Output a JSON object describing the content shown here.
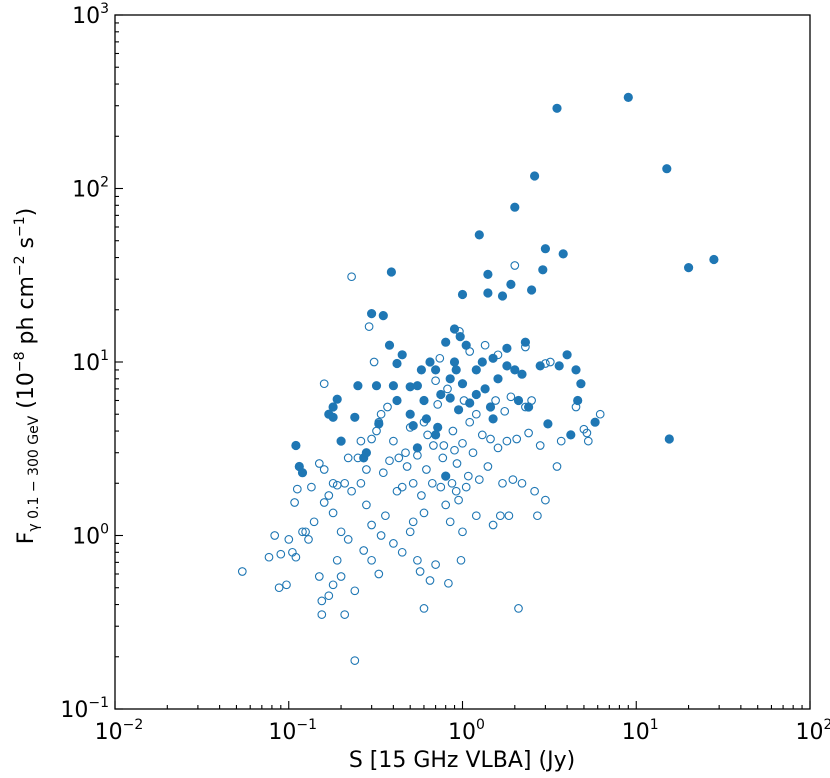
{
  "chart_data": {
    "type": "scatter",
    "title": "",
    "x_scale": "log",
    "y_scale": "log",
    "xlim": [
      0.01,
      100
    ],
    "ylim": [
      0.1,
      1000
    ],
    "x_ticks": [
      {
        "value": 0.01,
        "base": "10",
        "exp": "−2"
      },
      {
        "value": 0.1,
        "base": "10",
        "exp": "−1"
      },
      {
        "value": 1,
        "base": "10",
        "exp": "0"
      },
      {
        "value": 10,
        "base": "10",
        "exp": "1"
      },
      {
        "value": 100,
        "base": "10",
        "exp": "2"
      }
    ],
    "y_ticks": [
      {
        "value": 0.1,
        "base": "10",
        "exp": "−1"
      },
      {
        "value": 1,
        "base": "10",
        "exp": "0"
      },
      {
        "value": 10,
        "base": "10",
        "exp": "1"
      },
      {
        "value": 100,
        "base": "10",
        "exp": "2"
      },
      {
        "value": 1000,
        "base": "10",
        "exp": "3"
      }
    ],
    "xlabel": "S [15 GHz VLBA] (Jy)",
    "ylabel": {
      "main": "F",
      "symbol": "γ",
      "sub": " 0.1 − 300 GeV",
      "unit_a": " (10",
      "exp_a": "−8",
      "unit_b": " ph cm",
      "exp_b": "−2",
      "unit_c": " s",
      "exp_c": "−1",
      "unit_d": ")"
    },
    "color": "#1f77b4",
    "grid": false,
    "series": [
      {
        "marker": "filled",
        "points": [
          [
            0.11,
            3.3
          ],
          [
            0.115,
            2.5
          ],
          [
            0.12,
            2.3
          ],
          [
            0.17,
            5.0
          ],
          [
            0.18,
            4.8
          ],
          [
            0.18,
            5.5
          ],
          [
            0.19,
            6.1
          ],
          [
            0.2,
            3.5
          ],
          [
            0.24,
            4.8
          ],
          [
            0.25,
            7.3
          ],
          [
            0.27,
            2.8
          ],
          [
            0.28,
            3.0
          ],
          [
            0.3,
            19.0
          ],
          [
            0.32,
            7.3
          ],
          [
            0.33,
            4.4
          ],
          [
            0.35,
            18.5
          ],
          [
            0.38,
            12.5
          ],
          [
            0.39,
            33.0
          ],
          [
            0.4,
            7.3
          ],
          [
            0.42,
            9.8
          ],
          [
            0.42,
            6.0
          ],
          [
            0.45,
            11.0
          ],
          [
            0.5,
            7.2
          ],
          [
            0.5,
            5.0
          ],
          [
            0.52,
            4.3
          ],
          [
            0.55,
            7.3
          ],
          [
            0.55,
            3.2
          ],
          [
            0.58,
            9.0
          ],
          [
            0.6,
            6.0
          ],
          [
            0.62,
            4.7
          ],
          [
            0.65,
            10.0
          ],
          [
            0.7,
            3.8
          ],
          [
            0.7,
            9.0
          ],
          [
            0.72,
            4.2
          ],
          [
            0.75,
            6.5
          ],
          [
            0.8,
            13.0
          ],
          [
            0.8,
            2.2
          ],
          [
            0.85,
            8.0
          ],
          [
            0.85,
            6.2
          ],
          [
            0.9,
            15.5
          ],
          [
            0.9,
            10.0
          ],
          [
            0.92,
            9.0
          ],
          [
            0.95,
            5.3
          ],
          [
            0.97,
            14.0
          ],
          [
            1.0,
            24.5
          ],
          [
            1.0,
            7.5
          ],
          [
            1.05,
            12.5
          ],
          [
            1.1,
            5.8
          ],
          [
            1.2,
            9.0
          ],
          [
            1.2,
            6.5
          ],
          [
            1.25,
            54.0
          ],
          [
            1.3,
            10.0
          ],
          [
            1.35,
            7.0
          ],
          [
            1.4,
            32.0
          ],
          [
            1.4,
            25.0
          ],
          [
            1.45,
            5.5
          ],
          [
            1.5,
            4.7
          ],
          [
            1.5,
            10.5
          ],
          [
            1.6,
            8.0
          ],
          [
            1.7,
            24.0
          ],
          [
            1.8,
            12.0
          ],
          [
            1.8,
            9.5
          ],
          [
            1.9,
            28.0
          ],
          [
            2.0,
            78.0
          ],
          [
            2.0,
            9.0
          ],
          [
            2.1,
            6.0
          ],
          [
            2.2,
            8.5
          ],
          [
            2.3,
            13.0
          ],
          [
            2.4,
            5.5
          ],
          [
            2.5,
            26.0
          ],
          [
            2.6,
            118.0
          ],
          [
            2.8,
            9.5
          ],
          [
            2.9,
            34.0
          ],
          [
            3.0,
            45.0
          ],
          [
            3.1,
            4.4
          ],
          [
            3.5,
            290.0
          ],
          [
            3.6,
            9.5
          ],
          [
            3.8,
            42.0
          ],
          [
            4.0,
            11.0
          ],
          [
            4.2,
            3.8
          ],
          [
            4.5,
            9.0
          ],
          [
            4.6,
            6.0
          ],
          [
            4.8,
            7.5
          ],
          [
            5.8,
            4.5
          ],
          [
            9.0,
            335.0
          ],
          [
            15.0,
            130.0
          ],
          [
            15.5,
            3.6
          ],
          [
            20.0,
            35.0
          ],
          [
            28.0,
            39.0
          ]
        ]
      },
      {
        "marker": "hollow",
        "points": [
          [
            0.054,
            0.62
          ],
          [
            0.077,
            0.75
          ],
          [
            0.083,
            1.0
          ],
          [
            0.088,
            0.5
          ],
          [
            0.09,
            0.78
          ],
          [
            0.097,
            0.52
          ],
          [
            0.1,
            0.95
          ],
          [
            0.105,
            0.8
          ],
          [
            0.108,
            1.55
          ],
          [
            0.11,
            0.75
          ],
          [
            0.112,
            1.85
          ],
          [
            0.12,
            1.05
          ],
          [
            0.125,
            1.05
          ],
          [
            0.13,
            0.95
          ],
          [
            0.135,
            1.9
          ],
          [
            0.14,
            1.2
          ],
          [
            0.15,
            0.58
          ],
          [
            0.15,
            2.6
          ],
          [
            0.155,
            0.42
          ],
          [
            0.155,
            0.35
          ],
          [
            0.16,
            1.55
          ],
          [
            0.16,
            2.4
          ],
          [
            0.17,
            1.7
          ],
          [
            0.17,
            0.45
          ],
          [
            0.18,
            0.52
          ],
          [
            0.18,
            2.0
          ],
          [
            0.18,
            1.35
          ],
          [
            0.19,
            0.72
          ],
          [
            0.19,
            1.95
          ],
          [
            0.2,
            1.05
          ],
          [
            0.2,
            0.58
          ],
          [
            0.21,
            0.35
          ],
          [
            0.21,
            2.0
          ],
          [
            0.22,
            0.95
          ],
          [
            0.22,
            2.8
          ],
          [
            0.23,
            1.8
          ],
          [
            0.23,
            31.0
          ],
          [
            0.24,
            0.48
          ],
          [
            0.24,
            0.19
          ],
          [
            0.25,
            2.8
          ],
          [
            0.26,
            2.0
          ],
          [
            0.26,
            3.5
          ],
          [
            0.27,
            0.82
          ],
          [
            0.28,
            2.4
          ],
          [
            0.28,
            1.5
          ],
          [
            0.29,
            16.0
          ],
          [
            0.3,
            0.72
          ],
          [
            0.3,
            1.15
          ],
          [
            0.3,
            3.6
          ],
          [
            0.31,
            10.0
          ],
          [
            0.32,
            4.0
          ],
          [
            0.33,
            4.5
          ],
          [
            0.33,
            0.6
          ],
          [
            0.34,
            1.0
          ],
          [
            0.34,
            5.0
          ],
          [
            0.35,
            2.3
          ],
          [
            0.36,
            1.3
          ],
          [
            0.37,
            5.5
          ],
          [
            0.38,
            2.7
          ],
          [
            0.4,
            0.9
          ],
          [
            0.4,
            3.5
          ],
          [
            0.42,
            1.8
          ],
          [
            0.43,
            2.8
          ],
          [
            0.45,
            1.9
          ],
          [
            0.45,
            0.8
          ],
          [
            0.47,
            3.0
          ],
          [
            0.48,
            2.5
          ],
          [
            0.5,
            1.05
          ],
          [
            0.5,
            4.2
          ],
          [
            0.52,
            2.0
          ],
          [
            0.52,
            1.2
          ],
          [
            0.55,
            0.72
          ],
          [
            0.55,
            2.9
          ],
          [
            0.57,
            0.62
          ],
          [
            0.58,
            1.7
          ],
          [
            0.6,
            4.5
          ],
          [
            0.6,
            1.35
          ],
          [
            0.6,
            0.38
          ],
          [
            0.62,
            2.4
          ],
          [
            0.63,
            3.8
          ],
          [
            0.65,
            0.55
          ],
          [
            0.67,
            2.0
          ],
          [
            0.68,
            3.3
          ],
          [
            0.7,
            0.68
          ],
          [
            0.7,
            7.8
          ],
          [
            0.72,
            5.7
          ],
          [
            0.75,
            1.9
          ],
          [
            0.77,
            2.8
          ],
          [
            0.78,
            3.3
          ],
          [
            0.8,
            1.5
          ],
          [
            0.82,
            7.0
          ],
          [
            0.83,
            0.53
          ],
          [
            0.85,
            1.2
          ],
          [
            0.87,
            2.0
          ],
          [
            0.88,
            4.0
          ],
          [
            0.9,
            3.1
          ],
          [
            0.92,
            1.8
          ],
          [
            0.93,
            2.6
          ],
          [
            0.95,
            1.6
          ],
          [
            0.98,
            0.72
          ],
          [
            1.0,
            1.05
          ],
          [
            1.0,
            3.4
          ],
          [
            1.02,
            6.0
          ],
          [
            1.05,
            1.9
          ],
          [
            1.08,
            2.2
          ],
          [
            1.1,
            4.5
          ],
          [
            1.15,
            3.0
          ],
          [
            1.2,
            5.0
          ],
          [
            1.2,
            1.3
          ],
          [
            1.25,
            2.1
          ],
          [
            1.3,
            3.8
          ],
          [
            1.35,
            12.5
          ],
          [
            1.4,
            2.5
          ],
          [
            1.45,
            3.6
          ],
          [
            1.5,
            1.15
          ],
          [
            1.55,
            6.0
          ],
          [
            1.6,
            3.2
          ],
          [
            1.65,
            1.3
          ],
          [
            1.7,
            2.0
          ],
          [
            1.75,
            5.2
          ],
          [
            1.8,
            3.5
          ],
          [
            1.85,
            1.3
          ],
          [
            1.9,
            6.3
          ],
          [
            1.95,
            2.1
          ],
          [
            2.0,
            36.0
          ],
          [
            2.05,
            3.6
          ],
          [
            2.1,
            0.38
          ],
          [
            2.2,
            2.0
          ],
          [
            2.3,
            5.5
          ],
          [
            2.4,
            3.9
          ],
          [
            2.5,
            6.0
          ],
          [
            2.6,
            1.8
          ],
          [
            2.7,
            1.3
          ],
          [
            2.8,
            3.3
          ],
          [
            3.0,
            1.6
          ],
          [
            3.2,
            10.0
          ],
          [
            3.5,
            2.5
          ],
          [
            3.7,
            3.5
          ],
          [
            4.5,
            5.5
          ],
          [
            5.0,
            4.1
          ],
          [
            5.2,
            3.9
          ],
          [
            5.3,
            3.5
          ],
          [
            6.2,
            5.0
          ],
          [
            0.74,
            10.5
          ],
          [
            0.96,
            15.0
          ],
          [
            1.1,
            11.5
          ],
          [
            1.6,
            11.0
          ],
          [
            2.3,
            12.2
          ],
          [
            3.0,
            9.8
          ],
          [
            0.16,
            7.5
          ]
        ]
      }
    ]
  }
}
